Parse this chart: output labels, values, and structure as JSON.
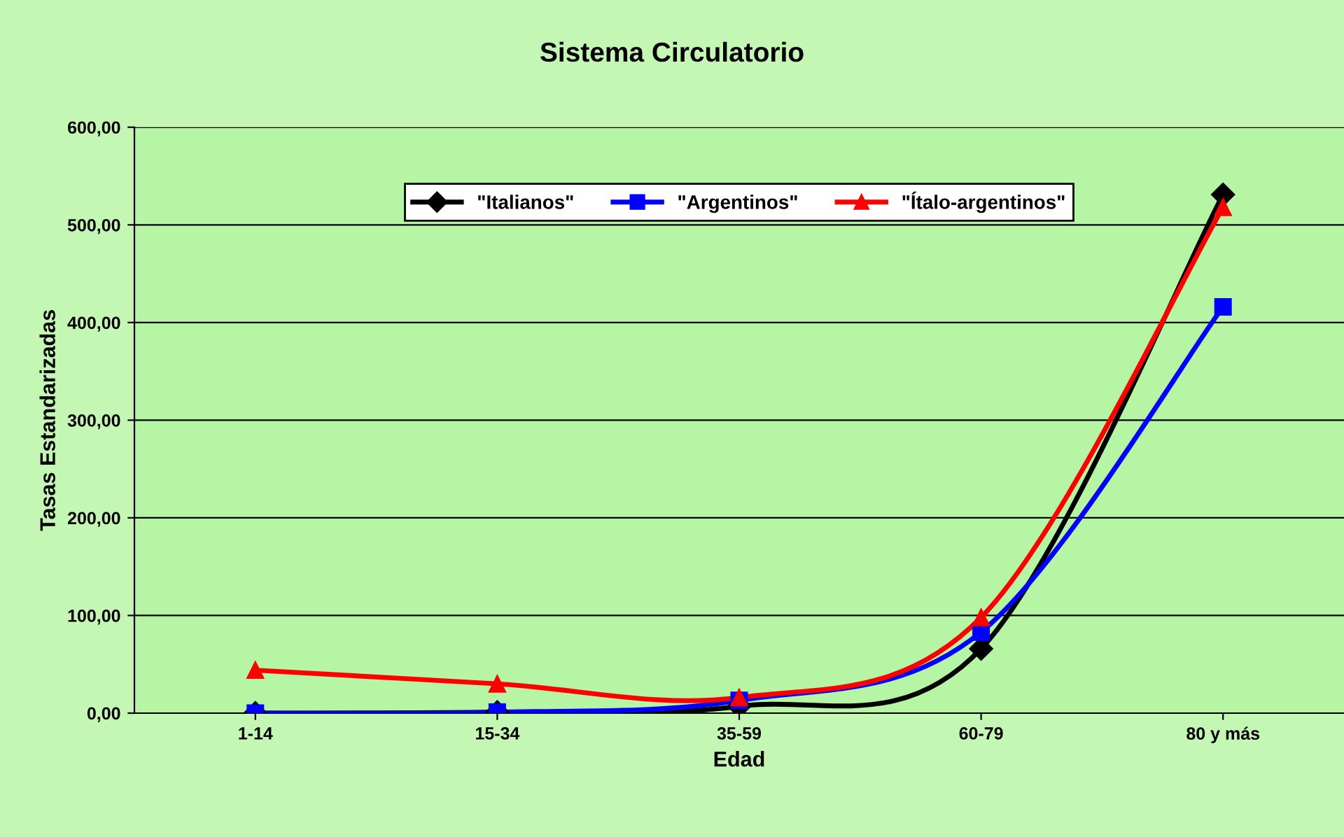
{
  "chart_data": {
    "type": "line",
    "title": "Sistema Circulatorio",
    "xlabel": "Edad",
    "ylabel": "Tasas Estandarizadas",
    "categories": [
      "1-14",
      "15-34",
      "35-59",
      "60-79",
      "80 y más"
    ],
    "series": [
      {
        "name": "\"Italianos\"",
        "color": "#000000",
        "marker": "diamond",
        "values": [
          0,
          1,
          7,
          66,
          531
        ]
      },
      {
        "name": "\"Argentinos\"",
        "color": "#0000ff",
        "marker": "square",
        "values": [
          0,
          1,
          13,
          83,
          416
        ]
      },
      {
        "name": "\"Ítalo-argentinos\"",
        "color": "#ff0000",
        "marker": "triangle",
        "values": [
          44,
          30,
          16,
          98,
          518
        ]
      }
    ],
    "ylim": [
      0,
      600
    ],
    "yticks": [
      {
        "value": 0,
        "label": "0,00"
      },
      {
        "value": 100,
        "label": "100,00"
      },
      {
        "value": 200,
        "label": "200,00"
      },
      {
        "value": 300,
        "label": "300,00"
      },
      {
        "value": 400,
        "label": "400,00"
      },
      {
        "value": 500,
        "label": "500,00"
      },
      {
        "value": 600,
        "label": "600,00"
      }
    ],
    "grid": "y",
    "legend": "top",
    "line_style": "solid"
  }
}
